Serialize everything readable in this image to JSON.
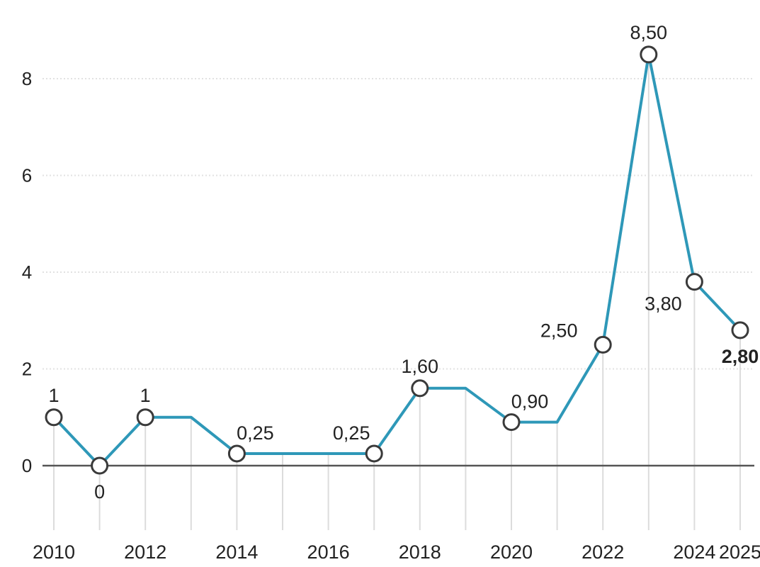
{
  "chart_data": {
    "type": "line",
    "title": "",
    "xlabel": "",
    "ylabel": "",
    "x": [
      2010,
      2011,
      2012,
      2013,
      2014,
      2015,
      2016,
      2017,
      2018,
      2019,
      2020,
      2021,
      2022,
      2023,
      2024,
      2025
    ],
    "series": [
      {
        "values": [
          1,
          0,
          1,
          1,
          0.25,
          0.25,
          0.25,
          0.25,
          1.6,
          1.6,
          0.9,
          0.9,
          2.5,
          8.5,
          3.8,
          2.8
        ],
        "color": "#2e98b8"
      }
    ],
    "points": [
      {
        "year": 2010,
        "value": 1,
        "label": "1",
        "label_position": "above"
      },
      {
        "year": 2011,
        "value": 0,
        "label": "0",
        "label_position": "below"
      },
      {
        "year": 2012,
        "value": 1,
        "label": "1",
        "label_position": "above"
      },
      {
        "year": 2014,
        "value": 0.25,
        "label": "0,25",
        "label_position": "above-right"
      },
      {
        "year": 2017,
        "value": 0.25,
        "label": "0,25",
        "label_position": "above-left"
      },
      {
        "year": 2018,
        "value": 1.6,
        "label": "1,60",
        "label_position": "above"
      },
      {
        "year": 2020,
        "value": 0.9,
        "label": "0,90",
        "label_position": "above-right"
      },
      {
        "year": 2022,
        "value": 2.5,
        "label": "2,50",
        "label_position": "left"
      },
      {
        "year": 2023,
        "value": 8.5,
        "label": "8,50",
        "label_position": "above"
      },
      {
        "year": 2024,
        "value": 3.8,
        "label": "3,80",
        "label_position": "below-left"
      },
      {
        "year": 2025,
        "value": 2.8,
        "label": "2,80",
        "label_position": "below",
        "bold": true
      }
    ],
    "x_tick_labels": [
      "2010",
      "2012",
      "2014",
      "2016",
      "2018",
      "2020",
      "2022",
      "2024",
      "2025"
    ],
    "y_ticks": [
      0,
      2,
      4,
      6,
      8
    ],
    "y_tick_labels": [
      "0",
      "2",
      "4",
      "6",
      "8"
    ],
    "xlim": [
      2010,
      2025
    ],
    "ylim": [
      -1.3,
      8.5
    ],
    "grid": true,
    "legend": "none"
  }
}
